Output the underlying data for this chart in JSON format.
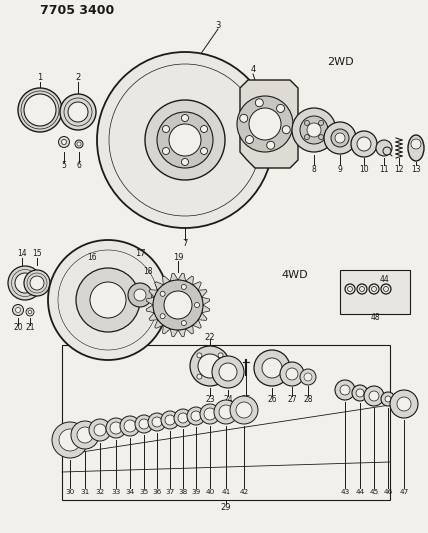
{
  "title": "7705 3400",
  "bg_color": "#f2f0eb",
  "line_color": "#1a1a1a",
  "label_2wd": "2WD",
  "label_4wd": "4WD",
  "gray_light": "#d8d6d0",
  "gray_mid": "#c8c6c0",
  "gray_dark": "#b0aeaa",
  "white": "#f2f0eb"
}
